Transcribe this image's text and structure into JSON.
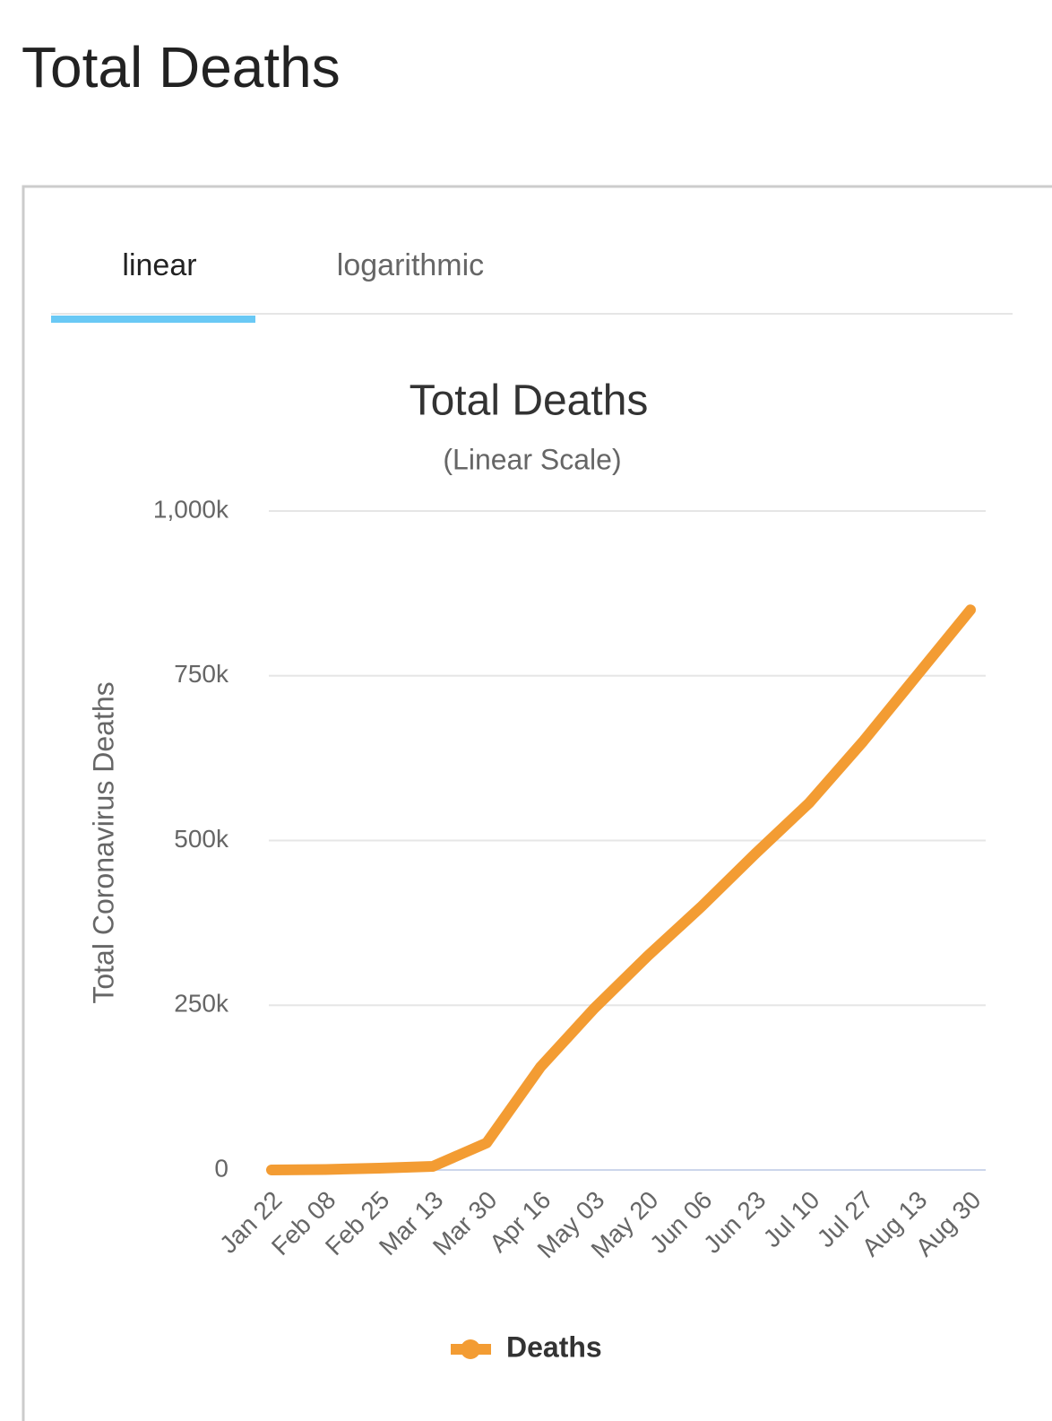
{
  "header": {
    "title": "Total Deaths"
  },
  "tabs": [
    "linear",
    "logarithmic"
  ],
  "chart_data": {
    "type": "line",
    "title": "Total Deaths",
    "subtitle": "(Linear Scale)",
    "y_label": "Total Coronavirus Deaths",
    "categories": [
      "Jan 22",
      "Feb 08",
      "Feb 25",
      "Mar 13",
      "Mar 30",
      "Apr 16",
      "May 03",
      "May 20",
      "Jun 06",
      "Jun 23",
      "Jul 10",
      "Jul 27",
      "Aug 13",
      "Aug 30"
    ],
    "series": [
      {
        "name": "Deaths",
        "color": "#f39c33",
        "values": [
          17,
          700,
          2700,
          5400,
          41000,
          156000,
          245000,
          325000,
          400000,
          480000,
          557000,
          650000,
          750000,
          850000
        ]
      }
    ],
    "ylim": [
      0,
      1000000
    ],
    "yticks": [
      0,
      {
        "value": 250000,
        "label": "250k"
      },
      {
        "value": 500000,
        "label": "500k"
      },
      {
        "value": 750000,
        "label": "750k"
      },
      {
        "value": 1000000,
        "label": "1,000k"
      }
    ],
    "grid": true
  }
}
